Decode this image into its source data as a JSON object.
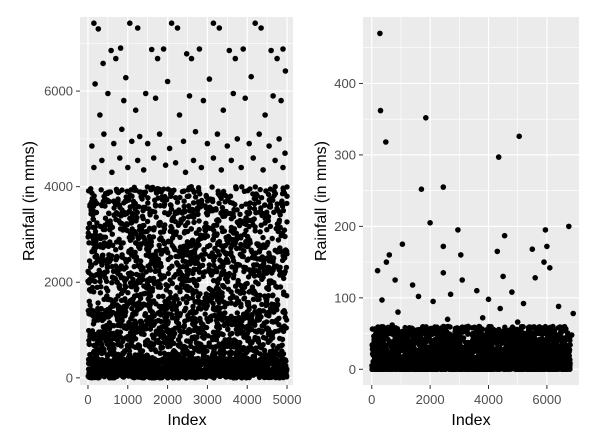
{
  "chart_data": [
    {
      "type": "scatter",
      "xlabel": "Index",
      "ylabel": "Rainfall (in mms)",
      "xlim": [
        -200,
        5150
      ],
      "ylim": [
        -150,
        7550
      ],
      "xticks": [
        0,
        1000,
        2000,
        3000,
        4000,
        5000
      ],
      "xtick_labels": [
        "0",
        "1000",
        "2000",
        "3000",
        "4000",
        "5000"
      ],
      "yticks": [
        0,
        2000,
        4000,
        6000
      ],
      "ytick_labels": [
        "0",
        "2000",
        "4000",
        "6000"
      ],
      "grid": true,
      "point_color": "#000000",
      "panel_color": "#ebebeb",
      "n_points": 5000,
      "points": [
        [
          150,
          7420
        ],
        [
          260,
          7300
        ],
        [
          1050,
          7420
        ],
        [
          1250,
          7320
        ],
        [
          2100,
          7420
        ],
        [
          2250,
          7320
        ],
        [
          3150,
          7420
        ],
        [
          3300,
          7320
        ],
        [
          4200,
          7420
        ],
        [
          4350,
          7320
        ],
        [
          380,
          6580
        ],
        [
          580,
          6850
        ],
        [
          700,
          6680
        ],
        [
          820,
          6900
        ],
        [
          1600,
          6870
        ],
        [
          1750,
          6680
        ],
        [
          1900,
          6880
        ],
        [
          2480,
          6780
        ],
        [
          2600,
          6680
        ],
        [
          2800,
          6880
        ],
        [
          3550,
          6850
        ],
        [
          3700,
          6680
        ],
        [
          3900,
          6880
        ],
        [
          4600,
          6850
        ],
        [
          4750,
          6680
        ],
        [
          4900,
          6880
        ],
        [
          4960,
          6420
        ],
        [
          180,
          6150
        ],
        [
          950,
          6280
        ],
        [
          2000,
          6200
        ],
        [
          3050,
          6250
        ],
        [
          4100,
          6300
        ],
        [
          300,
          5500
        ],
        [
          500,
          5950
        ],
        [
          900,
          5800
        ],
        [
          1200,
          5600
        ],
        [
          1450,
          5950
        ],
        [
          1700,
          5850
        ],
        [
          2300,
          5500
        ],
        [
          2550,
          5900
        ],
        [
          2900,
          5800
        ],
        [
          3400,
          5600
        ],
        [
          3650,
          5950
        ],
        [
          3950,
          5850
        ],
        [
          4450,
          5500
        ],
        [
          4650,
          5900
        ],
        [
          4850,
          5800
        ],
        [
          100,
          4850
        ],
        [
          400,
          5100
        ],
        [
          650,
          4900
        ],
        [
          850,
          5200
        ],
        [
          1100,
          4950
        ],
        [
          1300,
          5050
        ],
        [
          1500,
          4900
        ],
        [
          1800,
          5100
        ],
        [
          2050,
          4800
        ],
        [
          2400,
          4950
        ],
        [
          2700,
          5150
        ],
        [
          3000,
          4900
        ],
        [
          3250,
          5100
        ],
        [
          3500,
          4850
        ],
        [
          3750,
          5000
        ],
        [
          4050,
          4900
        ],
        [
          4300,
          5100
        ],
        [
          4550,
          4850
        ],
        [
          4800,
          5000
        ],
        [
          4950,
          4700
        ],
        [
          150,
          4400
        ],
        [
          350,
          4550
        ],
        [
          600,
          4300
        ],
        [
          800,
          4600
        ],
        [
          1000,
          4400
        ],
        [
          1250,
          4550
        ],
        [
          1400,
          4350
        ],
        [
          1650,
          4600
        ],
        [
          1950,
          4450
        ],
        [
          2200,
          4500
        ],
        [
          2450,
          4300
        ],
        [
          2650,
          4550
        ],
        [
          2850,
          4400
        ],
        [
          3150,
          4600
        ],
        [
          3350,
          4350
        ],
        [
          3600,
          4550
        ],
        [
          3850,
          4400
        ],
        [
          4150,
          4600
        ],
        [
          4400,
          4350
        ],
        [
          4700,
          4550
        ],
        [
          4900,
          4400
        ]
      ],
      "dense_band": {
        "x_range": [
          0,
          5000
        ],
        "y_range": [
          0,
          4000
        ],
        "note": "points become denser toward 0"
      }
    },
    {
      "type": "scatter",
      "xlabel": "Index",
      "ylabel": "Rainfall (in mms)",
      "xlim": [
        -300,
        7100
      ],
      "ylim": [
        -22,
        493
      ],
      "xticks": [
        0,
        2000,
        4000,
        6000
      ],
      "xtick_labels": [
        "0",
        "2000",
        "4000",
        "6000"
      ],
      "yticks": [
        0,
        100,
        200,
        300,
        400
      ],
      "ytick_labels": [
        "0",
        "100",
        "200",
        "300",
        "400"
      ],
      "grid": true,
      "point_color": "#000000",
      "panel_color": "#ebebeb",
      "n_points": 6800,
      "points": [
        [
          280,
          470
        ],
        [
          300,
          362
        ],
        [
          480,
          318
        ],
        [
          1850,
          352
        ],
        [
          5050,
          326
        ],
        [
          4350,
          297
        ],
        [
          1700,
          252
        ],
        [
          2450,
          255
        ],
        [
          2000,
          205
        ],
        [
          6750,
          200
        ],
        [
          5950,
          195
        ],
        [
          2950,
          195
        ],
        [
          4550,
          187
        ],
        [
          1050,
          175
        ],
        [
          6000,
          172
        ],
        [
          2450,
          172
        ],
        [
          5500,
          168
        ],
        [
          4300,
          165
        ],
        [
          600,
          160
        ],
        [
          500,
          150
        ],
        [
          3050,
          160
        ],
        [
          5900,
          150
        ],
        [
          6100,
          142
        ],
        [
          200,
          138
        ],
        [
          800,
          125
        ],
        [
          1400,
          118
        ],
        [
          2450,
          135
        ],
        [
          3100,
          125
        ],
        [
          4500,
          130
        ],
        [
          5600,
          128
        ],
        [
          350,
          97
        ],
        [
          900,
          80
        ],
        [
          1600,
          102
        ],
        [
          2100,
          95
        ],
        [
          2700,
          105
        ],
        [
          3600,
          110
        ],
        [
          4000,
          98
        ],
        [
          4800,
          108
        ],
        [
          5200,
          92
        ],
        [
          6400,
          88
        ],
        [
          6900,
          78
        ],
        [
          700,
          62
        ],
        [
          1200,
          55
        ],
        [
          1900,
          48
        ],
        [
          2600,
          70
        ],
        [
          3300,
          60
        ],
        [
          3800,
          72
        ],
        [
          4400,
          85
        ],
        [
          5000,
          66
        ],
        [
          5800,
          58
        ],
        [
          6500,
          52
        ],
        [
          6850,
          48
        ]
      ],
      "dense_band": {
        "x_range": [
          0,
          6800
        ],
        "y_range": [
          0,
          60
        ],
        "note": "points become denser toward 0"
      }
    }
  ]
}
